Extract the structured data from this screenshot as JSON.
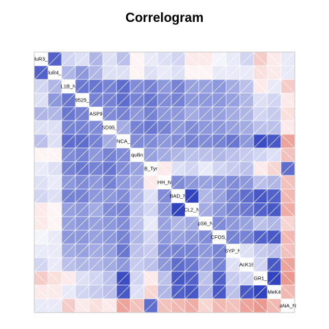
{
  "title": "Correlogram",
  "chart_data": {
    "type": "heatmap",
    "title": "Correlogram",
    "labels": [
      "luR3_",
      "luR4_",
      "L1B_N",
      "9525_",
      "ASP9",
      "SD95_",
      "NCA_",
      "quilin",
      "B_Tyr",
      "HH_N",
      "BAD_N",
      "CL2_N",
      "pS6_N",
      "CFOS_",
      "SYP_N",
      "AcK16",
      "GR1_",
      "MeK4",
      "aNA_N"
    ],
    "palette": {
      "negative": "#d7301f",
      "zero": "#ffffff",
      "positive": "#1a2eb8"
    },
    "matrix": [
      [
        1,
        0.75,
        0.2,
        0.15,
        0.35,
        0.15,
        0.3,
        -0.05,
        0.1,
        0.15,
        0.2,
        -0.1,
        -0.1,
        0.05,
        0.1,
        0.2,
        -0.25,
        -0.1,
        0.1
      ],
      [
        0.75,
        1,
        0.35,
        0.5,
        0.35,
        0.15,
        0.15,
        -0.05,
        0.15,
        0.1,
        0.15,
        -0.05,
        -0.05,
        0.1,
        0.1,
        0.1,
        -0.15,
        -0.1,
        0.1
      ],
      [
        0.2,
        0.35,
        1,
        0.65,
        0.65,
        0.6,
        0.7,
        0.55,
        0.6,
        0.5,
        0.6,
        0.45,
        0.45,
        0.5,
        0.4,
        0.3,
        -0.1,
        0.1,
        -0.25
      ],
      [
        0.15,
        0.5,
        0.65,
        1,
        0.6,
        0.6,
        0.7,
        0.6,
        0.65,
        0.55,
        0.6,
        0.5,
        0.5,
        0.5,
        0.45,
        0.35,
        0.15,
        0.2,
        -0.1
      ],
      [
        0.35,
        0.35,
        0.65,
        0.6,
        1,
        0.55,
        0.6,
        0.5,
        0.6,
        0.5,
        0.5,
        0.4,
        0.45,
        0.45,
        0.4,
        0.35,
        0.2,
        0.25,
        -0.15
      ],
      [
        0.15,
        0.15,
        0.6,
        0.6,
        0.55,
        1,
        0.4,
        0.6,
        0.65,
        0.6,
        0.5,
        0.55,
        0.5,
        0.5,
        0.45,
        0.4,
        0.3,
        0.3,
        -0.1
      ],
      [
        0.3,
        0.15,
        0.7,
        0.7,
        0.6,
        0.4,
        1,
        0.55,
        0.55,
        0.5,
        0.55,
        0.6,
        0.55,
        0.6,
        0.65,
        0.5,
        0.85,
        0.8,
        -0.45
      ],
      [
        -0.05,
        -0.05,
        0.55,
        0.6,
        0.5,
        0.6,
        0.55,
        1,
        0.45,
        0.4,
        0.35,
        0.3,
        0.3,
        0.35,
        0.3,
        0.25,
        0.2,
        0.15,
        -0.3
      ],
      [
        0.1,
        0.15,
        0.6,
        0.65,
        0.6,
        0.65,
        0.55,
        0.45,
        1,
        -0.1,
        0.15,
        0.2,
        0.1,
        0.2,
        0.25,
        0.3,
        -0.1,
        -0.2,
        0.7
      ],
      [
        0.15,
        0.1,
        0.5,
        0.55,
        0.5,
        0.6,
        0.5,
        0.4,
        -0.1,
        1,
        0.55,
        0.5,
        0.45,
        0.5,
        0.55,
        0.5,
        0.3,
        0.35,
        -0.3
      ],
      [
        0.2,
        0.15,
        0.6,
        0.6,
        0.5,
        0.5,
        0.55,
        0.35,
        0.15,
        0.55,
        1,
        0.9,
        0.35,
        0.45,
        0.6,
        0.7,
        0.8,
        0.75,
        -0.35
      ],
      [
        -0.1,
        -0.05,
        0.45,
        0.5,
        0.4,
        0.55,
        0.6,
        0.3,
        0.2,
        0.5,
        0.9,
        1,
        0.4,
        0.5,
        0.6,
        0.65,
        0.75,
        0.8,
        -0.4
      ],
      [
        -0.1,
        -0.05,
        0.45,
        0.5,
        0.45,
        0.5,
        0.55,
        0.3,
        0.1,
        0.45,
        0.35,
        0.4,
        1,
        0.55,
        0.5,
        0.45,
        0.3,
        0.35,
        -0.2
      ],
      [
        0.05,
        0.1,
        0.5,
        0.5,
        0.45,
        0.5,
        0.6,
        0.35,
        0.2,
        0.5,
        0.45,
        0.5,
        0.55,
        1,
        0.6,
        0.6,
        0.75,
        0.8,
        -0.35
      ],
      [
        0.1,
        0.1,
        0.4,
        0.45,
        0.4,
        0.45,
        0.65,
        0.3,
        0.25,
        0.55,
        0.6,
        0.6,
        0.5,
        0.6,
        1,
        0.15,
        0.25,
        0.3,
        -0.3
      ],
      [
        0.2,
        0.1,
        0.3,
        0.35,
        0.35,
        0.4,
        0.5,
        0.25,
        0.3,
        0.5,
        0.7,
        0.65,
        0.45,
        0.6,
        0.15,
        1,
        0.2,
        0.8,
        -0.45
      ],
      [
        -0.25,
        -0.15,
        -0.1,
        0.15,
        0.2,
        0.3,
        0.85,
        0.2,
        -0.1,
        0.3,
        0.8,
        0.75,
        0.3,
        0.75,
        0.25,
        0.2,
        1,
        0.9,
        -0.5
      ],
      [
        -0.1,
        -0.1,
        0.1,
        0.2,
        0.25,
        0.3,
        0.8,
        0.15,
        -0.2,
        0.35,
        0.75,
        0.8,
        0.35,
        0.8,
        0.3,
        0.8,
        0.9,
        1,
        -0.35
      ],
      [
        0.1,
        0.1,
        -0.25,
        -0.1,
        -0.15,
        -0.1,
        -0.45,
        -0.3,
        0.7,
        -0.3,
        -0.35,
        -0.4,
        -0.2,
        -0.35,
        -0.3,
        -0.45,
        -0.5,
        -0.35,
        1
      ]
    ]
  }
}
